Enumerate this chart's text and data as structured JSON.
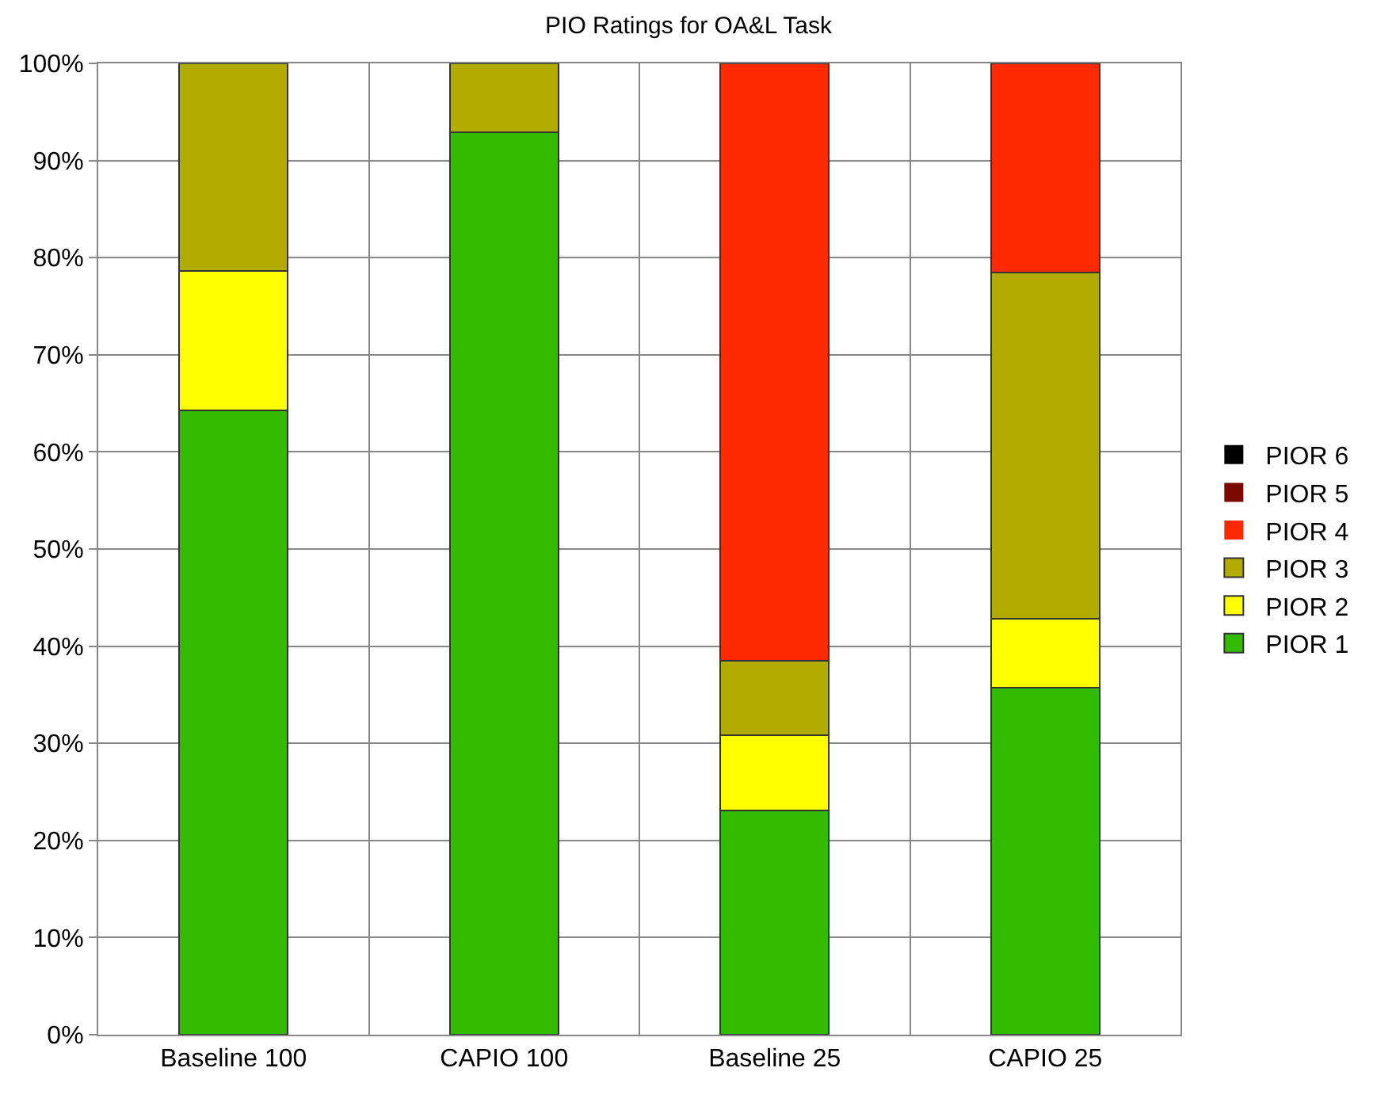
{
  "chart_data": {
    "type": "bar",
    "title": "PIO Ratings for OA&L Task",
    "stacked": true,
    "categories": [
      "Baseline 100",
      "CAPIO 100",
      "Baseline 25",
      "CAPIO 25"
    ],
    "series": [
      {
        "name": "PIOR 1",
        "color": "#33bb00",
        "values": [
          64.3,
          92.9,
          23.1,
          35.7
        ]
      },
      {
        "name": "PIOR 2",
        "color": "#ffff00",
        "values": [
          14.3,
          0,
          7.7,
          7.1
        ]
      },
      {
        "name": "PIOR 3",
        "color": "#b3ac00",
        "values": [
          21.4,
          7.1,
          7.7,
          35.7
        ]
      },
      {
        "name": "PIOR 4",
        "color": "#ff2a00",
        "values": [
          0,
          0,
          61.5,
          21.5
        ]
      },
      {
        "name": "PIOR 5",
        "color": "#7a0a00",
        "values": [
          0,
          0,
          0,
          0
        ]
      },
      {
        "name": "PIOR 6",
        "color": "#000000",
        "values": [
          0,
          0,
          0,
          0
        ]
      }
    ],
    "ylim": [
      0,
      100
    ],
    "yticks": [
      {
        "value": 0,
        "label": "0%"
      },
      {
        "value": 10,
        "label": "10%"
      },
      {
        "value": 20,
        "label": "20%"
      },
      {
        "value": 30,
        "label": "30%"
      },
      {
        "value": 40,
        "label": "40%"
      },
      {
        "value": 50,
        "label": "50%"
      },
      {
        "value": 60,
        "label": "60%"
      },
      {
        "value": 70,
        "label": "70%"
      },
      {
        "value": 80,
        "label": "80%"
      },
      {
        "value": 90,
        "label": "90%"
      },
      {
        "value": 100,
        "label": "100%"
      }
    ],
    "grid": true,
    "legend": "right"
  }
}
